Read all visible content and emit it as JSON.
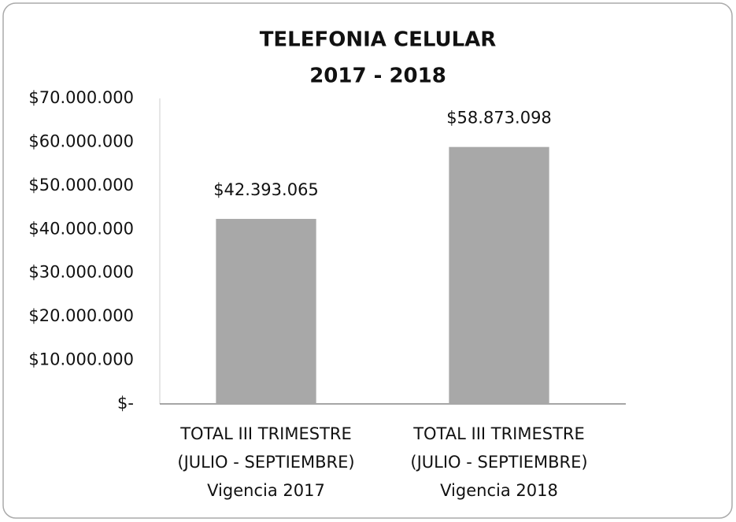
{
  "chart_data": {
    "type": "bar",
    "title": [
      "TELEFONIA CELULAR",
      "2017 - 2018"
    ],
    "categories": [
      [
        "TOTAL III TRIMESTRE",
        "(JULIO - SEPTIEMBRE)",
        "Vigencia 2017"
      ],
      [
        "TOTAL III TRIMESTRE",
        "(JULIO - SEPTIEMBRE)",
        "Vigencia 2018"
      ]
    ],
    "values": [
      42393065,
      58873098
    ],
    "value_labels": [
      "$42.393.065",
      "$58.873.098"
    ],
    "color": "#a8a8a8",
    "ylim": [
      0,
      70000000
    ],
    "yticks": [
      {
        "value": 0,
        "label": "$-"
      },
      {
        "value": 10000000,
        "label": "$10.000.000"
      },
      {
        "value": 20000000,
        "label": "$20.000.000"
      },
      {
        "value": 30000000,
        "label": "$30.000.000"
      },
      {
        "value": 40000000,
        "label": "$40.000.000"
      },
      {
        "value": 50000000,
        "label": "$50.000.000"
      },
      {
        "value": 60000000,
        "label": "$60.000.000"
      },
      {
        "value": 70000000,
        "label": "$70.000.000"
      }
    ],
    "grid": false
  }
}
